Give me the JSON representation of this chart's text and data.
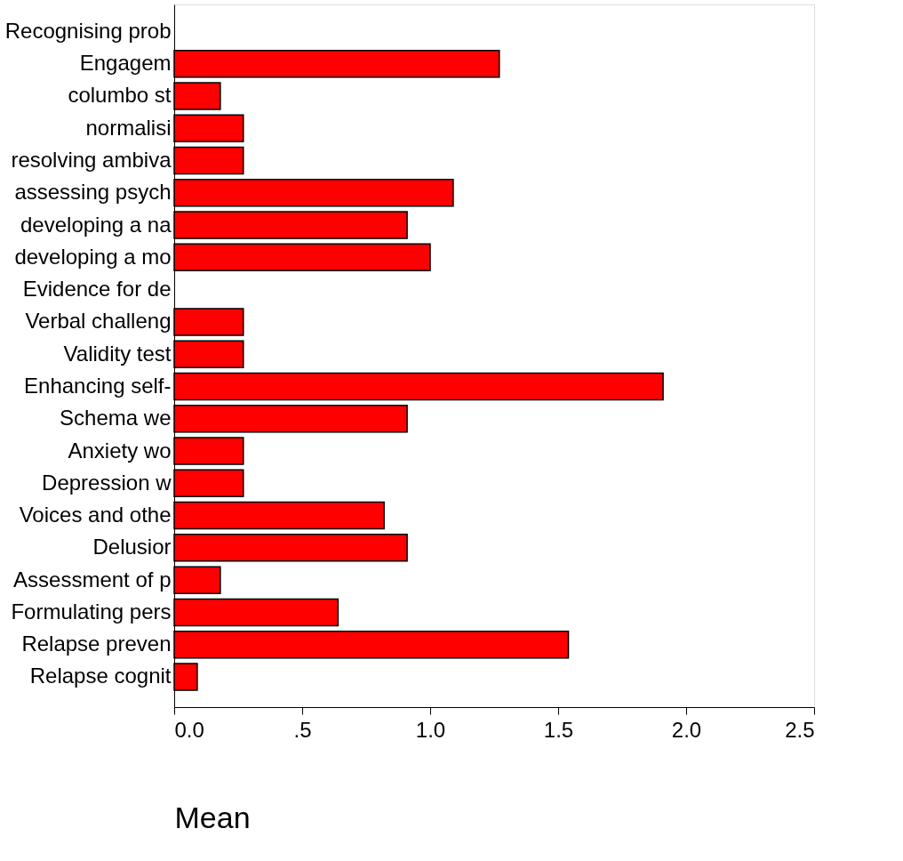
{
  "chart_data": {
    "type": "bar",
    "orientation": "horizontal",
    "xlabel": "Mean",
    "categories": [
      "Recognising prob",
      "Engagem",
      "columbo st",
      "normalisi",
      "resolving ambiva",
      "assessing psych",
      "developing a na",
      "developing a mo",
      "Evidence for de",
      "Verbal challeng",
      "Validity test",
      "Enhancing self-",
      "Schema we",
      "Anxiety wo",
      "Depression w",
      "Voices and othe",
      "Delusior",
      "Assessment of p",
      "Formulating pers",
      "Relapse preven",
      "Relapse cognit"
    ],
    "values": [
      null,
      1.27,
      0.18,
      0.27,
      0.27,
      1.09,
      0.91,
      1.0,
      null,
      0.27,
      0.27,
      1.91,
      0.91,
      0.27,
      0.27,
      0.82,
      0.91,
      0.18,
      0.64,
      1.54,
      0.09
    ],
    "color": "#ff0000",
    "xlim": [
      0,
      2.5
    ],
    "xticks": [
      {
        "value": 0,
        "label": "0.0"
      },
      {
        "value": 0.5,
        "label": ".5"
      },
      {
        "value": 1,
        "label": "1.0"
      },
      {
        "value": 1.5,
        "label": "1.5"
      },
      {
        "value": 2,
        "label": "2.0"
      },
      {
        "value": 2.5,
        "label": "2.5"
      }
    ],
    "grid": false
  }
}
